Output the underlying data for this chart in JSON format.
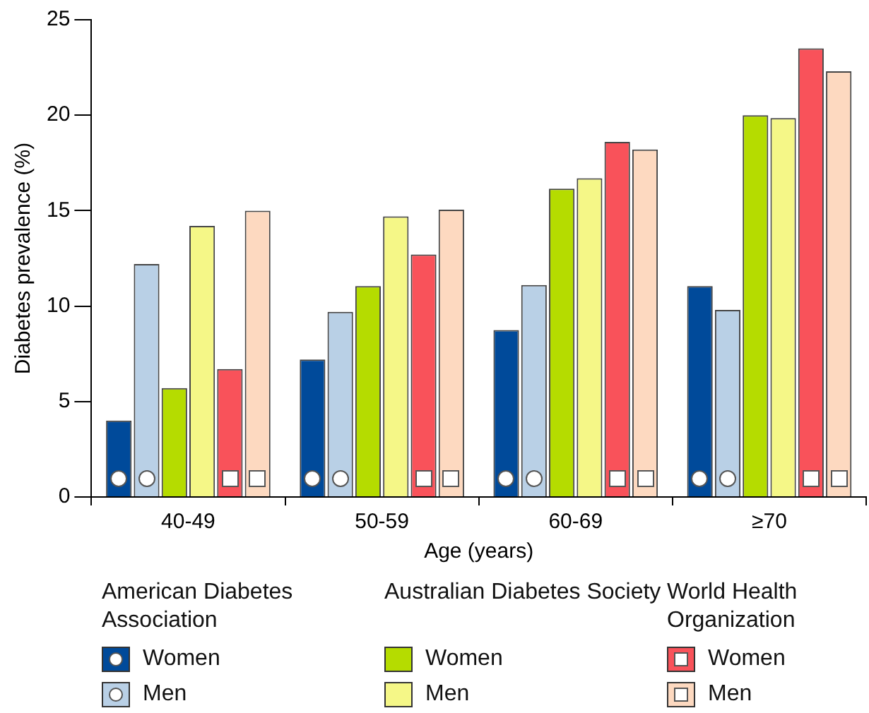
{
  "chart_data": {
    "type": "bar",
    "categories": [
      "40-49",
      "50-59",
      "60-69",
      "≥70"
    ],
    "xlabel": "Age (years)",
    "ylabel": "Diabetes prevalence (%)",
    "ylim": [
      0,
      25
    ],
    "yticks": [
      0,
      5,
      10,
      15,
      20,
      25
    ],
    "grid": false,
    "legend": "bottom",
    "annotations": [
      "American Diabetes Association",
      "Australian Diabetes Society",
      "World Health Organization"
    ],
    "series": [
      {
        "name": "Women",
        "color": "#004a9a",
        "marker": "circle",
        "values": [
          4.0,
          7.2,
          8.75,
          11.05
        ]
      },
      {
        "name": "Men",
        "color": "#b9d0e6",
        "marker": "circle",
        "values": [
          12.2,
          9.7,
          11.1,
          9.8
        ]
      },
      {
        "name": "Women",
        "color": "#b5dc00",
        "values": [
          5.7,
          11.05,
          16.15,
          20.0
        ]
      },
      {
        "name": "Men",
        "color": "#f5f787",
        "values": [
          14.2,
          14.7,
          16.7,
          19.85
        ]
      },
      {
        "name": "Women",
        "color": "#f9525a",
        "marker": "square",
        "values": [
          6.7,
          12.7,
          18.6,
          23.5
        ]
      },
      {
        "name": "Men",
        "color": "#fdd9c0",
        "marker": "square",
        "values": [
          15.0,
          15.05,
          18.2,
          22.3
        ]
      }
    ]
  }
}
